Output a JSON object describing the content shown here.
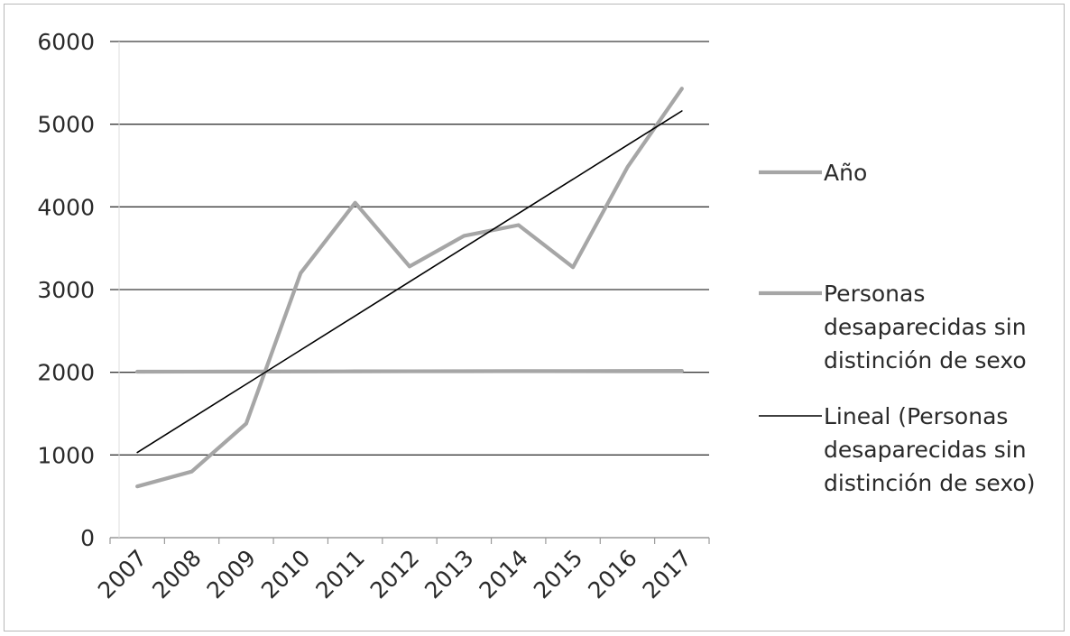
{
  "chart_data": {
    "type": "line",
    "categories": [
      "2007",
      "2008",
      "2009",
      "2010",
      "2011",
      "2012",
      "2013",
      "2014",
      "2015",
      "2016",
      "2017"
    ],
    "series": [
      {
        "name": "Año",
        "values": [
          2007,
          2008,
          2009,
          2010,
          2011,
          2012,
          2013,
          2014,
          2015,
          2016,
          2017
        ],
        "color": "#a6a6a6"
      },
      {
        "name": "Personas desaparecidas sin distinción de sexo",
        "values": [
          620,
          800,
          1380,
          3200,
          4050,
          3280,
          3650,
          3780,
          3270,
          4480,
          5430
        ],
        "color": "#a6a6a6"
      },
      {
        "name": "Lineal (Personas desaparecidas sin distinción de sexo)",
        "values": [
          1030,
          1443,
          1856,
          2269,
          2682,
          3095,
          3508,
          3921,
          4334,
          4747,
          5160
        ],
        "color": "#000000",
        "trendline": true
      }
    ],
    "yticks": [
      "0",
      "1000",
      "2000",
      "3000",
      "4000",
      "5000",
      "6000"
    ],
    "ylim": [
      0,
      6000
    ],
    "grid": true,
    "legend_position": "right",
    "legend": [
      {
        "lines": [
          "Año"
        ]
      },
      {
        "lines": [
          "Personas",
          "desaparecidas sin",
          "distinción de sexo"
        ]
      },
      {
        "lines": [
          "Lineal (Personas",
          "desaparecidas sin",
          "distinción de sexo)"
        ]
      }
    ]
  }
}
